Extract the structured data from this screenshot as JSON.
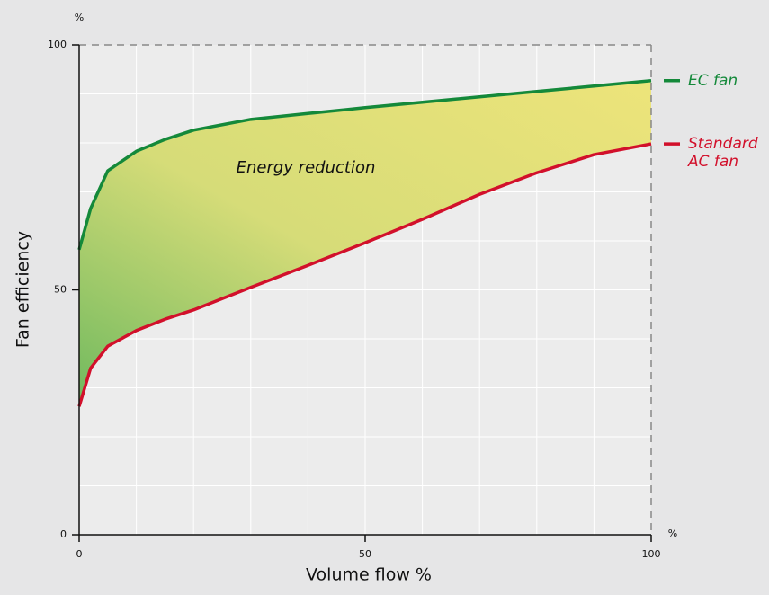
{
  "chart_data": {
    "type": "line",
    "x_label": "Volume flow %",
    "y_label": "Fan efficiency",
    "x_unit": "%",
    "y_unit": "%",
    "annotation": "Energy reduction",
    "x": [
      0,
      2,
      5,
      10,
      15,
      20,
      30,
      40,
      50,
      60,
      70,
      80,
      90,
      100
    ],
    "series": [
      {
        "name": "EC fan",
        "color": "#14893a",
        "values": [
          58.2,
          66.6,
          74.3,
          78.3,
          80.7,
          82.6,
          84.8,
          86.0,
          87.2,
          88.3,
          89.4,
          90.5,
          91.6,
          92.7
        ]
      },
      {
        "name": "Standard AC fan",
        "color": "#d2102b",
        "values": [
          26.2,
          34.0,
          38.5,
          41.7,
          44.0,
          45.9,
          50.5,
          55.0,
          59.6,
          64.4,
          69.5,
          73.9,
          77.6,
          79.8
        ]
      }
    ],
    "fill_between": true,
    "xlim": [
      0,
      100
    ],
    "ylim": [
      0,
      100
    ],
    "xticks": [
      0,
      50,
      100
    ],
    "yticks": [
      0,
      50,
      100
    ],
    "xgrid": [
      10,
      20,
      30,
      40,
      50,
      60,
      70,
      80,
      90
    ],
    "ygrid": [
      10,
      20,
      30,
      40,
      50,
      60,
      70,
      80,
      90
    ]
  }
}
